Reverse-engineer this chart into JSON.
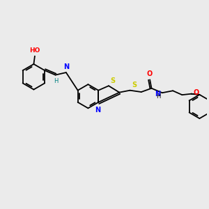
{
  "background_color": "#ebebeb",
  "bond_color": "#000000",
  "atom_colors": {
    "S": "#cccc00",
    "N": "#0000ff",
    "O": "#ff0000",
    "H_imine": "#008080",
    "HO": "#ff0000",
    "NH": "#0000ff",
    "O_ether": "#ff0000",
    "O_carbonyl": "#ff0000"
  },
  "figsize": [
    3.0,
    3.0
  ],
  "dpi": 100,
  "lw": 1.3
}
